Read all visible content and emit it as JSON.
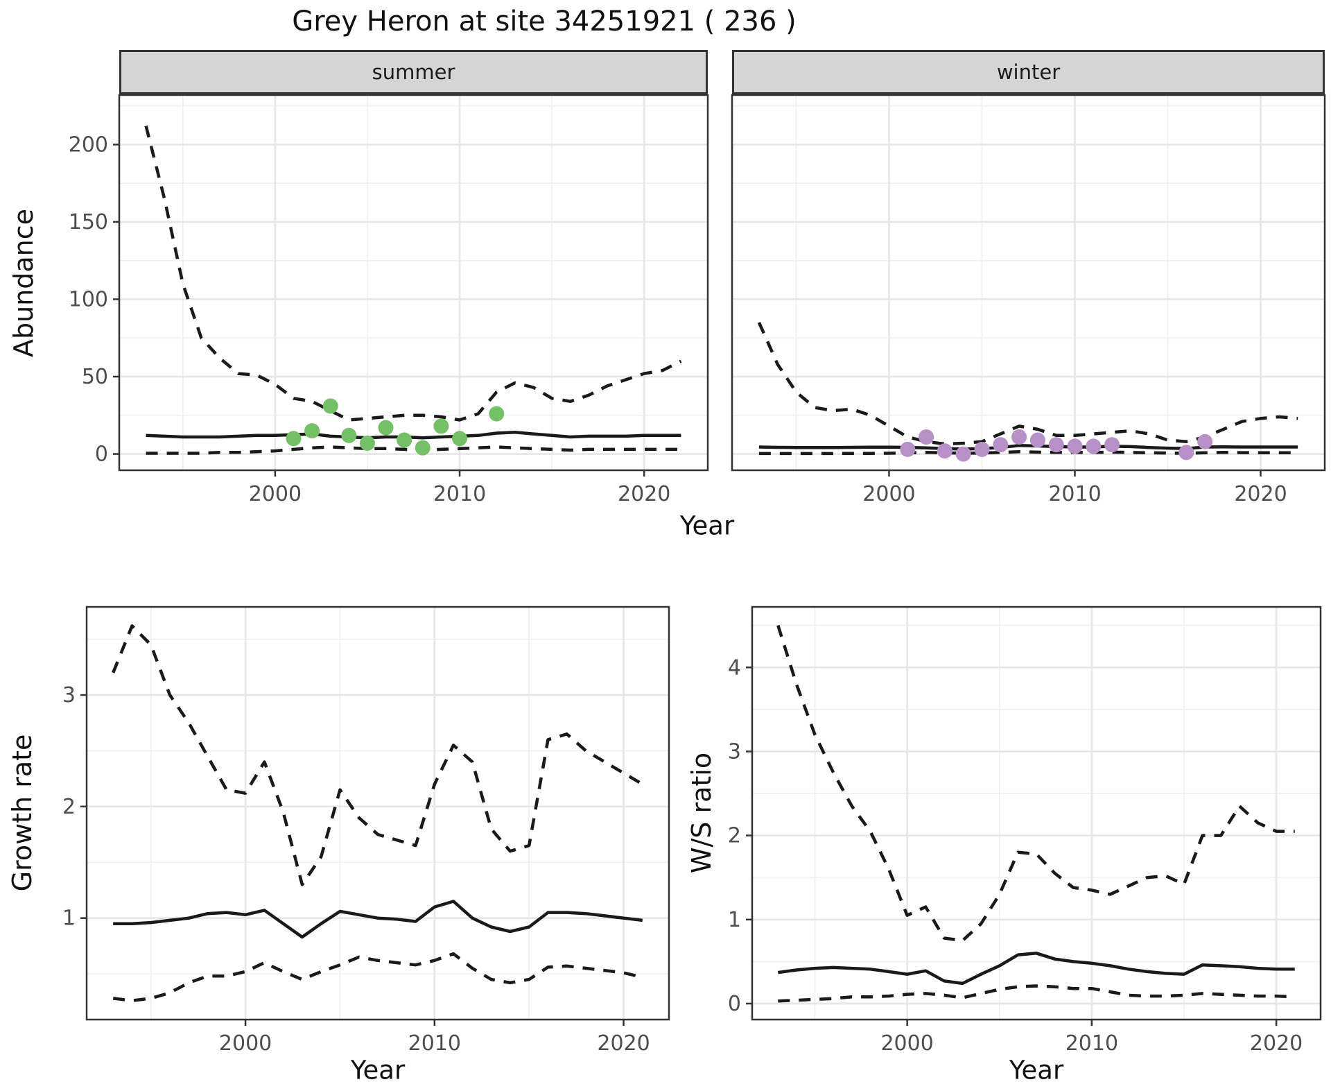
{
  "title": "Grey Heron at site 34251921 ( 236 )",
  "facets": [
    {
      "label": "summer"
    },
    {
      "label": "winter"
    }
  ],
  "axis_labels": {
    "abundance": "Abundance",
    "year": "Year",
    "growth": "Growth rate",
    "ws": "W/S ratio"
  },
  "colors": {
    "summer_point": "#74c067",
    "winter_point": "#b890c8",
    "line": "#1a1a1a",
    "panel_border": "#333333",
    "strip_fill": "#d5d5d5",
    "grid_major": "#e6e6e6",
    "grid_minor": "#f0f0f0",
    "tick_label": "#4d4d4d",
    "background": "#ffffff"
  },
  "chart_data": [
    {
      "id": "abundance_summer",
      "type": "line",
      "facet": "summer",
      "xlabel": "Year",
      "ylabel": "Abundance",
      "xlim": [
        1991.55,
        2023.45
      ],
      "ylim": [
        -10.5,
        232
      ],
      "xticks": [
        2000,
        2010,
        2020
      ],
      "yticks": [
        0,
        50,
        100,
        150,
        200
      ],
      "xminor": [
        1995,
        2005,
        2015
      ],
      "yminor": [
        25,
        75,
        125,
        175,
        225
      ],
      "series": [
        {
          "name": "upper_credible",
          "style": "dashed",
          "x": [
            1993,
            1994,
            1995,
            1996,
            1997,
            1998,
            1999,
            2000,
            2001,
            2002,
            2003,
            2004,
            2005,
            2006,
            2007,
            2008,
            2009,
            2010,
            2011,
            2012,
            2013,
            2014,
            2015,
            2016,
            2017,
            2018,
            2019,
            2020,
            2021,
            2022
          ],
          "y": [
            212,
            165,
            110,
            75,
            62,
            52,
            51,
            45,
            36,
            34,
            28,
            22,
            23,
            24,
            25,
            25,
            24,
            22,
            26,
            40,
            46,
            43,
            36,
            34,
            38,
            44,
            48,
            52,
            54,
            60
          ]
        },
        {
          "name": "median",
          "style": "solid",
          "x": [
            1993,
            1994,
            1995,
            1996,
            1997,
            1998,
            1999,
            2000,
            2001,
            2002,
            2003,
            2004,
            2005,
            2006,
            2007,
            2008,
            2009,
            2010,
            2011,
            2012,
            2013,
            2014,
            2015,
            2016,
            2017,
            2018,
            2019,
            2020,
            2021,
            2022
          ],
          "y": [
            12,
            11.5,
            11,
            11,
            11,
            11.5,
            12,
            12,
            12.5,
            13,
            11.5,
            11,
            10.5,
            11,
            11,
            10.5,
            11,
            11.5,
            12,
            13.5,
            14,
            13,
            12,
            11,
            11.5,
            11.5,
            11.5,
            12,
            12,
            12
          ]
        },
        {
          "name": "lower_credible",
          "style": "dashed",
          "x": [
            1993,
            1994,
            1995,
            1996,
            1997,
            1998,
            1999,
            2000,
            2001,
            2002,
            2003,
            2004,
            2005,
            2006,
            2007,
            2008,
            2009,
            2010,
            2011,
            2012,
            2013,
            2014,
            2015,
            2016,
            2017,
            2018,
            2019,
            2020,
            2021,
            2022
          ],
          "y": [
            0.5,
            0.5,
            0.5,
            0.5,
            1,
            1,
            1.5,
            2,
            3,
            4,
            4.5,
            4,
            3.5,
            3.5,
            3,
            2.5,
            3,
            3.5,
            4,
            4.5,
            4,
            3.5,
            3,
            2.5,
            3,
            3,
            3,
            3,
            3,
            3
          ]
        },
        {
          "name": "observations",
          "style": "points",
          "color": "#74c067",
          "x": [
            2001,
            2002,
            2003,
            2004,
            2005,
            2006,
            2007,
            2008,
            2009,
            2010,
            2012
          ],
          "y": [
            10,
            15,
            31,
            12,
            7,
            17,
            9,
            4,
            18,
            10,
            26
          ]
        }
      ]
    },
    {
      "id": "abundance_winter",
      "type": "line",
      "facet": "winter",
      "xlabel": "Year",
      "ylabel": "Abundance",
      "xlim": [
        1991.55,
        2023.45
      ],
      "ylim": [
        -10.5,
        232
      ],
      "xticks": [
        2000,
        2010,
        2020
      ],
      "yticks": [
        0,
        50,
        100,
        150,
        200
      ],
      "xminor": [
        1995,
        2005,
        2015
      ],
      "yminor": [
        25,
        75,
        125,
        175,
        225
      ],
      "series": [
        {
          "name": "upper_credible",
          "style": "dashed",
          "x": [
            1993,
            1994,
            1995,
            1996,
            1997,
            1998,
            1999,
            2000,
            2001,
            2002,
            2003,
            2004,
            2005,
            2006,
            2007,
            2008,
            2009,
            2010,
            2011,
            2012,
            2013,
            2014,
            2015,
            2016,
            2017,
            2018,
            2019,
            2020,
            2021,
            2022
          ],
          "y": [
            85,
            58,
            40,
            30,
            28,
            29,
            25,
            18,
            11,
            8,
            6.5,
            7,
            8,
            13,
            18,
            16,
            12,
            12,
            13,
            14,
            15,
            13,
            9,
            8,
            11,
            16,
            21,
            23,
            24,
            23
          ]
        },
        {
          "name": "median",
          "style": "solid",
          "x": [
            1993,
            1994,
            1995,
            1996,
            1997,
            1998,
            1999,
            2000,
            2001,
            2002,
            2003,
            2004,
            2005,
            2006,
            2007,
            2008,
            2009,
            2010,
            2011,
            2012,
            2013,
            2014,
            2015,
            2016,
            2017,
            2018,
            2019,
            2020,
            2021,
            2022
          ],
          "y": [
            4.5,
            4.3,
            4.2,
            4.2,
            4.2,
            4.3,
            4.4,
            4.4,
            4.3,
            4,
            3.5,
            3.2,
            3.5,
            4.2,
            5.5,
            5.2,
            4.8,
            4.5,
            4.5,
            5,
            4.8,
            4.2,
            3.8,
            3.5,
            4.5,
            4.6,
            4.5,
            4.5,
            4.5,
            4.5
          ]
        },
        {
          "name": "lower_credible",
          "style": "dashed",
          "x": [
            1993,
            1994,
            1995,
            1996,
            1997,
            1998,
            1999,
            2000,
            2001,
            2002,
            2003,
            2004,
            2005,
            2006,
            2007,
            2008,
            2009,
            2010,
            2011,
            2012,
            2013,
            2014,
            2015,
            2016,
            2017,
            2018,
            2019,
            2020,
            2021,
            2022
          ],
          "y": [
            0.3,
            0.3,
            0.3,
            0.3,
            0.3,
            0.4,
            0.4,
            0.5,
            0.8,
            1,
            0.8,
            0.5,
            0.6,
            1,
            1.5,
            1.2,
            1,
            1,
            1,
            1.2,
            1,
            0.8,
            0.6,
            0.5,
            0.8,
            1,
            0.9,
            0.8,
            0.8,
            0.8
          ]
        },
        {
          "name": "observations",
          "style": "points",
          "color": "#b890c8",
          "x": [
            2001,
            2002,
            2003,
            2004,
            2005,
            2006,
            2007,
            2008,
            2009,
            2010,
            2011,
            2012,
            2016,
            2017
          ],
          "y": [
            3,
            11,
            2,
            0,
            3,
            6,
            11,
            9,
            6,
            5,
            5,
            6,
            1,
            8
          ]
        }
      ]
    },
    {
      "id": "growth_rate",
      "type": "line",
      "facet": null,
      "xlabel": "Year",
      "ylabel": "Growth rate",
      "xlim": [
        1991.6,
        2022.4
      ],
      "ylim": [
        0.09,
        3.79
      ],
      "xticks": [
        2000,
        2010,
        2020
      ],
      "yticks": [
        1,
        2,
        3
      ],
      "xminor": [
        1995,
        2005,
        2015
      ],
      "yminor": [
        0.5,
        1.5,
        2.5,
        3.5
      ],
      "series": [
        {
          "name": "upper_credible",
          "style": "dashed",
          "x": [
            1993,
            1994,
            1995,
            1996,
            1997,
            1998,
            1999,
            2000,
            2001,
            2002,
            2003,
            2004,
            2005,
            2006,
            2007,
            2008,
            2009,
            2010,
            2011,
            2012,
            2013,
            2014,
            2015,
            2016,
            2017,
            2018,
            2019,
            2020,
            2021
          ],
          "y": [
            3.2,
            3.62,
            3.45,
            3,
            2.75,
            2.45,
            2.15,
            2.12,
            2.4,
            1.95,
            1.3,
            1.55,
            2.15,
            1.9,
            1.75,
            1.7,
            1.65,
            2.2,
            2.55,
            2.4,
            1.8,
            1.6,
            1.65,
            2.6,
            2.65,
            2.5,
            2.4,
            2.3,
            2.2
          ]
        },
        {
          "name": "median",
          "style": "solid",
          "x": [
            1993,
            1994,
            1995,
            1996,
            1997,
            1998,
            1999,
            2000,
            2001,
            2002,
            2003,
            2004,
            2005,
            2006,
            2007,
            2008,
            2009,
            2010,
            2011,
            2012,
            2013,
            2014,
            2015,
            2016,
            2017,
            2018,
            2019,
            2020,
            2021
          ],
          "y": [
            0.95,
            0.95,
            0.96,
            0.98,
            1,
            1.04,
            1.05,
            1.03,
            1.07,
            0.95,
            0.83,
            0.95,
            1.06,
            1.03,
            1,
            0.99,
            0.97,
            1.1,
            1.15,
            1,
            0.92,
            0.88,
            0.92,
            1.05,
            1.05,
            1.04,
            1.02,
            1,
            0.98
          ]
        },
        {
          "name": "lower_credible",
          "style": "dashed",
          "x": [
            1993,
            1994,
            1995,
            1996,
            1997,
            1998,
            1999,
            2000,
            2001,
            2002,
            2003,
            2004,
            2005,
            2006,
            2007,
            2008,
            2009,
            2010,
            2011,
            2012,
            2013,
            2014,
            2015,
            2016,
            2017,
            2018,
            2019,
            2020,
            2021
          ],
          "y": [
            0.28,
            0.26,
            0.28,
            0.33,
            0.42,
            0.48,
            0.48,
            0.52,
            0.6,
            0.52,
            0.45,
            0.52,
            0.58,
            0.65,
            0.62,
            0.6,
            0.58,
            0.62,
            0.68,
            0.55,
            0.45,
            0.42,
            0.45,
            0.56,
            0.57,
            0.55,
            0.53,
            0.51,
            0.47
          ]
        }
      ]
    },
    {
      "id": "ws_ratio",
      "type": "line",
      "facet": null,
      "xlabel": "Year",
      "ylabel": "W/S ratio",
      "xlim": [
        1991.6,
        2022.4
      ],
      "ylim": [
        -0.19,
        4.72
      ],
      "xticks": [
        2000,
        2010,
        2020
      ],
      "yticks": [
        0,
        1,
        2,
        3,
        4
      ],
      "xminor": [
        1995,
        2005,
        2015
      ],
      "yminor": [
        0.5,
        1.5,
        2.5,
        3.5,
        4.5
      ],
      "series": [
        {
          "name": "upper_credible",
          "style": "dashed",
          "x": [
            1993,
            1994,
            1995,
            1996,
            1997,
            1998,
            1999,
            2000,
            2001,
            2002,
            2003,
            2004,
            2005,
            2006,
            2007,
            2008,
            2009,
            2010,
            2011,
            2012,
            2013,
            2014,
            2015,
            2016,
            2017,
            2018,
            2019,
            2020,
            2021
          ],
          "y": [
            4.5,
            3.8,
            3.2,
            2.75,
            2.35,
            2.05,
            1.6,
            1.05,
            1.15,
            0.78,
            0.75,
            0.95,
            1.3,
            1.8,
            1.78,
            1.55,
            1.38,
            1.35,
            1.3,
            1.4,
            1.5,
            1.52,
            1.42,
            2,
            2,
            2.35,
            2.15,
            2.05,
            2.05
          ]
        },
        {
          "name": "median",
          "style": "solid",
          "x": [
            1993,
            1994,
            1995,
            1996,
            1997,
            1998,
            1999,
            2000,
            2001,
            2002,
            2003,
            2004,
            2005,
            2006,
            2007,
            2008,
            2009,
            2010,
            2011,
            2012,
            2013,
            2014,
            2015,
            2016,
            2017,
            2018,
            2019,
            2020,
            2021
          ],
          "y": [
            0.37,
            0.4,
            0.42,
            0.43,
            0.42,
            0.41,
            0.38,
            0.35,
            0.39,
            0.27,
            0.24,
            0.35,
            0.45,
            0.58,
            0.6,
            0.53,
            0.5,
            0.48,
            0.45,
            0.41,
            0.38,
            0.36,
            0.35,
            0.46,
            0.45,
            0.44,
            0.42,
            0.41,
            0.41
          ]
        },
        {
          "name": "lower_credible",
          "style": "dashed",
          "x": [
            1993,
            1994,
            1995,
            1996,
            1997,
            1998,
            1999,
            2000,
            2001,
            2002,
            2003,
            2004,
            2005,
            2006,
            2007,
            2008,
            2009,
            2010,
            2011,
            2012,
            2013,
            2014,
            2015,
            2016,
            2017,
            2018,
            2019,
            2020,
            2021
          ],
          "y": [
            0.03,
            0.04,
            0.05,
            0.06,
            0.08,
            0.08,
            0.09,
            0.11,
            0.12,
            0.1,
            0.07,
            0.12,
            0.17,
            0.2,
            0.21,
            0.2,
            0.18,
            0.18,
            0.14,
            0.1,
            0.09,
            0.09,
            0.1,
            0.12,
            0.11,
            0.1,
            0.09,
            0.09,
            0.08
          ]
        }
      ]
    }
  ]
}
